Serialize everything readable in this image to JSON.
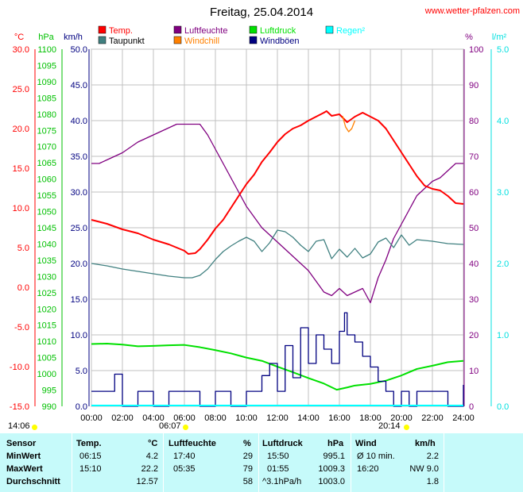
{
  "chart_data": {
    "type": "line",
    "title": "Freitag, 25.04.2014",
    "source_label": "www.wetter-pfalzen.com",
    "legend": [
      {
        "name": "Temp.",
        "color": "#ff0000"
      },
      {
        "name": "Taupunkt",
        "color": "#408080"
      },
      {
        "name": "Luftfeuchte",
        "color": "#800080"
      },
      {
        "name": "Windchill",
        "color": "#ff8000"
      },
      {
        "name": "Luftdruck",
        "color": "#00e000"
      },
      {
        "name": "Windböen",
        "color": "#000080"
      },
      {
        "name": "Regen²",
        "color": "#00ffff"
      }
    ],
    "axes": {
      "temp": {
        "unit": "°C",
        "color": "#ff0000",
        "ticks": [
          "30.0",
          "25.0",
          "20.0",
          "15.0",
          "10.0",
          "5.0",
          "0.0",
          "-5.0",
          "-10.0",
          "-15.0"
        ],
        "range": [
          -15,
          30
        ]
      },
      "pressure": {
        "unit": "hPa",
        "color": "#00c000",
        "ticks": [
          "1100",
          "1095",
          "1090",
          "1085",
          "1080",
          "1075",
          "1070",
          "1065",
          "1060",
          "1055",
          "1050",
          "1045",
          "1040",
          "1035",
          "1030",
          "1025",
          "1020",
          "1015",
          "1010",
          "1005",
          "1000",
          "995",
          "990"
        ],
        "range": [
          990,
          1100
        ]
      },
      "wind": {
        "unit": "km/h",
        "color": "#000080",
        "ticks": [
          "50.0",
          "45.0",
          "40.0",
          "35.0",
          "30.0",
          "25.0",
          "20.0",
          "15.0",
          "10.0",
          "5.0",
          "0.0"
        ],
        "range": [
          0,
          50
        ]
      },
      "humidity": {
        "unit": "%",
        "color": "#800080",
        "ticks": [
          "100",
          "90",
          "80",
          "70",
          "60",
          "50",
          "40",
          "30",
          "20",
          "10",
          "0"
        ],
        "range": [
          0,
          100
        ]
      },
      "rain": {
        "unit": "l/m²",
        "color": "#00e0e0",
        "ticks": [
          "5.0",
          "4.0",
          "3.0",
          "2.0",
          "1.0",
          "0.0"
        ],
        "range": [
          0,
          5
        ]
      },
      "x_ticks": [
        "00:00",
        "02:00",
        "04:00",
        "06:00",
        "08:00",
        "10:00",
        "12:00",
        "14:00",
        "16:00",
        "18:00",
        "20:00",
        "22:00",
        "24:00"
      ],
      "x_range": [
        0,
        24
      ]
    },
    "series": [
      {
        "name": "Temp.",
        "axis": "temp",
        "x": [
          0,
          1,
          2,
          3,
          4,
          5,
          5.5,
          6,
          6.25,
          6.7,
          7,
          7.5,
          8,
          8.5,
          9,
          9.5,
          10,
          10.5,
          11,
          11.5,
          12,
          12.5,
          13,
          13.5,
          14,
          14.5,
          15,
          15.17,
          15.5,
          16,
          16.5,
          17,
          17.5,
          18,
          18.5,
          19,
          19.5,
          20,
          20.5,
          21,
          21.5,
          22,
          22.5,
          23,
          23.5,
          24
        ],
        "values": [
          8.5,
          8.0,
          7.3,
          6.8,
          6.0,
          5.4,
          5.0,
          4.6,
          4.2,
          4.3,
          4.8,
          6.0,
          7.4,
          8.5,
          10.0,
          11.5,
          13.0,
          14.2,
          15.8,
          17.0,
          18.3,
          19.3,
          20.0,
          20.4,
          21.0,
          21.5,
          22.0,
          22.2,
          21.6,
          21.8,
          20.8,
          21.5,
          22.0,
          21.5,
          21.0,
          20.0,
          18.5,
          17.0,
          15.5,
          14.0,
          12.8,
          12.4,
          12.2,
          11.5,
          10.6,
          10.5
        ]
      },
      {
        "name": "Taupunkt",
        "axis": "temp",
        "x": [
          0,
          1,
          2,
          3,
          4,
          5,
          6,
          6.5,
          7,
          7.5,
          8,
          8.5,
          9,
          9.5,
          10,
          10.5,
          11,
          11.5,
          12,
          12.5,
          13,
          13.5,
          14,
          14.5,
          15,
          15.5,
          16,
          16.5,
          17,
          17.5,
          18,
          18.5,
          19,
          19.5,
          20,
          20.5,
          21,
          22,
          23,
          24
        ],
        "values": [
          3.0,
          2.7,
          2.3,
          2.0,
          1.7,
          1.4,
          1.2,
          1.2,
          1.5,
          2.3,
          3.5,
          4.5,
          5.2,
          5.8,
          6.3,
          5.8,
          4.5,
          5.6,
          7.2,
          7.0,
          6.3,
          5.3,
          4.5,
          5.8,
          6.0,
          3.6,
          4.8,
          3.8,
          4.9,
          3.7,
          4.2,
          5.7,
          6.2,
          5.0,
          6.6,
          5.3,
          6.0,
          5.8,
          5.5,
          5.4
        ]
      },
      {
        "name": "Luftfeuchte",
        "axis": "humidity",
        "x": [
          0,
          0.5,
          1,
          2,
          3,
          4,
          4.5,
          5,
          5.5,
          6,
          6.5,
          7,
          7.5,
          8,
          8.5,
          9,
          9.5,
          10,
          10.5,
          11,
          11.5,
          12,
          12.5,
          13,
          13.5,
          14,
          14.5,
          15,
          15.5,
          16,
          16.5,
          17,
          17.5,
          18,
          18.5,
          19,
          19.5,
          20,
          20.5,
          21,
          21.5,
          22,
          22.5,
          23,
          23.5,
          24
        ],
        "values": [
          68,
          68,
          69,
          71,
          74,
          76,
          77,
          78,
          79,
          79,
          79,
          79,
          76,
          72,
          68,
          64,
          60,
          56,
          53,
          50,
          48,
          46,
          44,
          42,
          40,
          38,
          35,
          32,
          31,
          33,
          31,
          32,
          33,
          29,
          36,
          41,
          47,
          51,
          55,
          59,
          61,
          63,
          64,
          66,
          68,
          68
        ]
      },
      {
        "name": "Luftdruck",
        "axis": "pressure",
        "x": [
          0,
          1,
          2,
          3,
          4,
          5,
          6,
          7,
          8,
          9,
          10,
          11,
          12,
          13,
          14,
          15,
          15.83,
          16.5,
          17,
          18,
          19,
          20,
          21,
          22,
          23,
          24
        ],
        "values": [
          1009.2,
          1009.3,
          1009.0,
          1008.5,
          1008.6,
          1008.8,
          1008.9,
          1008.2,
          1007.3,
          1006.3,
          1005.0,
          1004.0,
          1002.2,
          1000.5,
          998.7,
          997.0,
          995.1,
          995.8,
          996.4,
          996.9,
          997.9,
          999.5,
          1001.5,
          1002.5,
          1003.6,
          1004.0
        ]
      },
      {
        "name": "Windböen",
        "axis": "wind",
        "x": [
          0,
          1,
          1.5,
          2,
          3,
          4,
          5,
          6,
          7,
          8,
          9,
          10,
          11,
          11.5,
          12,
          12.5,
          13,
          13.5,
          14,
          14.5,
          15,
          15.5,
          16,
          16.33,
          16.5,
          17,
          17.5,
          18,
          18.5,
          19,
          19.5,
          20,
          20.5,
          21,
          22,
          23,
          24
        ],
        "values": [
          2.1,
          2.1,
          4.5,
          0,
          2.1,
          0,
          2.1,
          2.1,
          0,
          2.1,
          0,
          2.1,
          4.3,
          6.0,
          2.1,
          8.5,
          4.0,
          11.0,
          6.0,
          10.0,
          8.0,
          6.0,
          10.5,
          13.1,
          10.0,
          9.0,
          7.0,
          5.5,
          3.5,
          2.1,
          0,
          2.1,
          0,
          2.1,
          2.1,
          0,
          3.0
        ]
      },
      {
        "name": "Windchill",
        "axis": "temp",
        "x": [
          16.2,
          16.4,
          16.6,
          16.8,
          17.0
        ],
        "values": [
          21.6,
          20.2,
          19.6,
          20.0,
          21.0
        ]
      }
    ],
    "sun": {
      "sunrise": "06:07",
      "sunset": "20:14",
      "left_label": "14:06"
    }
  },
  "stats": {
    "headers": {
      "sensor": "Sensor",
      "temp": "Temp.",
      "temp_unit": "°C",
      "hum": "Luftfeuchte",
      "hum_unit": "%",
      "press": "Luftdruck",
      "press_unit": "hPa",
      "wind": "Wind",
      "wind_unit": "km/h"
    },
    "rows": [
      {
        "label": "MinWert",
        "t_time": "06:15",
        "t_val": "4.2",
        "h_time": "17:40",
        "h_val": "29",
        "p_time": "15:50",
        "p_val": "995.1",
        "w_time": "Ø 10 min.",
        "w_val": "2.2"
      },
      {
        "label": "MaxWert",
        "t_time": "15:10",
        "t_val": "22.2",
        "h_time": "05:35",
        "h_val": "79",
        "p_time": "01:55",
        "p_val": "1009.3",
        "w_time": "16:20",
        "w_val": "NW 9.0"
      },
      {
        "label": "Durchschnitt",
        "t_time": "",
        "t_val": "12.57",
        "h_time": "",
        "h_val": "58",
        "p_time": "^3.1hPa/h",
        "p_val": "1003.0",
        "w_time": "",
        "w_val": "1.8"
      }
    ]
  }
}
